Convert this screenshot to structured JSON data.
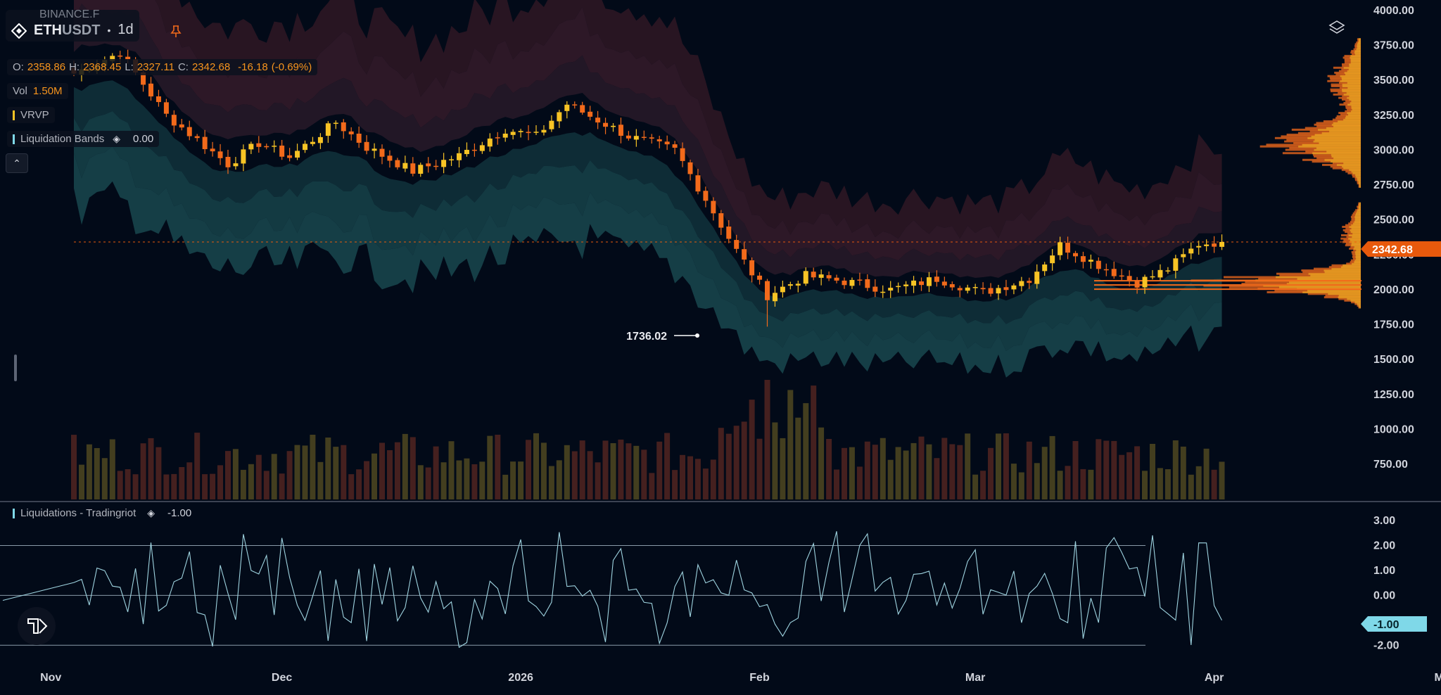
{
  "symbol": {
    "exchange": "BINANCE.F",
    "base": "ETH",
    "quote": "USDT",
    "timeframe": "1d",
    "separator": "•"
  },
  "ohlc": {
    "o_label": "O:",
    "o": "2358.86",
    "h_label": "H:",
    "h": "2368.45",
    "l_label": "L:",
    "l": "2327.11",
    "c_label": "C:",
    "c": "2342.68",
    "change": "-16.18",
    "change_pct": "(-0.69%)"
  },
  "indicators": {
    "vol_label": "Vol",
    "vol_value": "1.50M",
    "vrvp_label": "VRVP",
    "bands_label": "Liquidation Bands",
    "bands_value": "0.00",
    "liq_label": "Liquidations - Tradingriot",
    "liq_value": "-1.00"
  },
  "annotations": {
    "low_label": "1736.02",
    "last_price_badge": "2342.68",
    "osc_badge": "-1.00"
  },
  "colors": {
    "background": "#020a18",
    "bull": "#f7c325",
    "bear": "#f26a1b",
    "band_upper": "#3a1e2c",
    "band_lower": "#16474e",
    "osc_line": "#9fd4e0",
    "badge": "#e8590c",
    "osc_badge": "#7fd8e8"
  },
  "chart_data": [
    {
      "type": "candlestick",
      "title": "BINANCE.F ETHUSDT 1d",
      "ylim": [
        700,
        4000
      ],
      "y_ticks": [
        "4000.00",
        "3750.00",
        "3500.00",
        "3250.00",
        "3000.00",
        "2750.00",
        "2500.00",
        "2250.00",
        "2000.00",
        "1750.00",
        "1500.00",
        "1250.00",
        "1000.00",
        "750.00"
      ],
      "x_ticks": [
        "Nov",
        "Dec",
        "2026",
        "Feb",
        "Mar",
        "Apr",
        "May"
      ],
      "anchors": [
        {
          "day": 0,
          "close": 3550
        },
        {
          "day": 6,
          "close": 3700
        },
        {
          "day": 12,
          "close": 3250
        },
        {
          "day": 20,
          "close": 2900
        },
        {
          "day": 24,
          "close": 3050
        },
        {
          "day": 28,
          "close": 2950
        },
        {
          "day": 34,
          "close": 3200
        },
        {
          "day": 38,
          "close": 3020
        },
        {
          "day": 44,
          "close": 2850
        },
        {
          "day": 50,
          "close": 2960
        },
        {
          "day": 56,
          "close": 3150
        },
        {
          "day": 60,
          "close": 3100
        },
        {
          "day": 64,
          "close": 3330
        },
        {
          "day": 72,
          "close": 3100
        },
        {
          "day": 78,
          "close": 3000
        },
        {
          "day": 82,
          "close": 2650
        },
        {
          "day": 86,
          "close": 2280
        },
        {
          "day": 90,
          "close": 1960
        },
        {
          "day": 95,
          "close": 2100
        },
        {
          "day": 100,
          "close": 2060
        },
        {
          "day": 106,
          "close": 2000
        },
        {
          "day": 112,
          "close": 2080
        },
        {
          "day": 118,
          "close": 1980
        },
        {
          "day": 124,
          "close": 2080
        },
        {
          "day": 128,
          "close": 2320
        },
        {
          "day": 134,
          "close": 2150
        },
        {
          "day": 138,
          "close": 2050
        },
        {
          "day": 142,
          "close": 2150
        },
        {
          "day": 146,
          "close": 2330
        },
        {
          "day": 149,
          "close": 2342.68
        }
      ],
      "low_point": {
        "day": 90,
        "value": 1736.02
      },
      "last_close": 2342.68
    },
    {
      "type": "bar",
      "title": "Vol",
      "series_name": "Volume",
      "last_value": "1.50M"
    },
    {
      "type": "area",
      "title": "Liquidation Bands",
      "value": 0.0
    },
    {
      "type": "line",
      "title": "Liquidations - Tradingriot",
      "ylim": [
        -2.5,
        3.2
      ],
      "y_ticks": [
        "3.00",
        "2.00",
        "1.00",
        "0.00",
        "-1.00",
        "-2.00"
      ],
      "thresholds": [
        2.0,
        0.0,
        -2.0
      ],
      "last_value": -1.0
    }
  ]
}
